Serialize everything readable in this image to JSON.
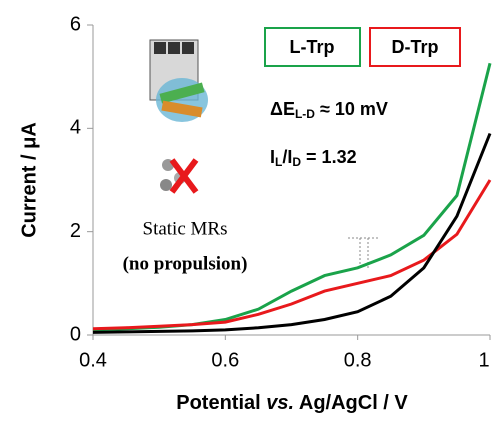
{
  "chart_data": {
    "type": "line",
    "x": [
      0.4,
      0.45,
      0.5,
      0.55,
      0.6,
      0.65,
      0.7,
      0.75,
      0.8,
      0.85,
      0.9,
      0.95,
      1.0
    ],
    "series": [
      {
        "name": "L-Trp",
        "color": "#1aa34a",
        "values": [
          0.1,
          0.12,
          0.15,
          0.2,
          0.3,
          0.5,
          0.85,
          1.15,
          1.3,
          1.55,
          1.93,
          2.7,
          5.26
        ]
      },
      {
        "name": "D-Trp",
        "color": "#e8191c",
        "values": [
          0.12,
          0.14,
          0.17,
          0.2,
          0.25,
          0.4,
          0.6,
          0.85,
          1.0,
          1.15,
          1.45,
          1.95,
          3.0
        ]
      },
      {
        "color": "#000000",
        "values": [
          0.05,
          0.06,
          0.07,
          0.08,
          0.1,
          0.14,
          0.2,
          0.3,
          0.45,
          0.75,
          1.3,
          2.3,
          3.9
        ]
      }
    ],
    "xlim": [
      0.4,
      1
    ],
    "xticks": [
      0.4,
      0.6,
      0.8,
      1
    ],
    "ylim": [
      0,
      6
    ],
    "yticks": [
      0,
      2,
      4,
      6
    ],
    "x_label": [
      "Potential ",
      "vs.",
      " Ag/AgCl / V"
    ],
    "y_label": "Current / μA",
    "annotations": [
      [
        "ΔE",
        "L-D",
        " ≈ 10 mV"
      ],
      [
        "I",
        "L",
        "/I",
        "D",
        " = 1.32"
      ]
    ],
    "inset_text": [
      "Static MRs",
      "(no propulsion)"
    ]
  }
}
